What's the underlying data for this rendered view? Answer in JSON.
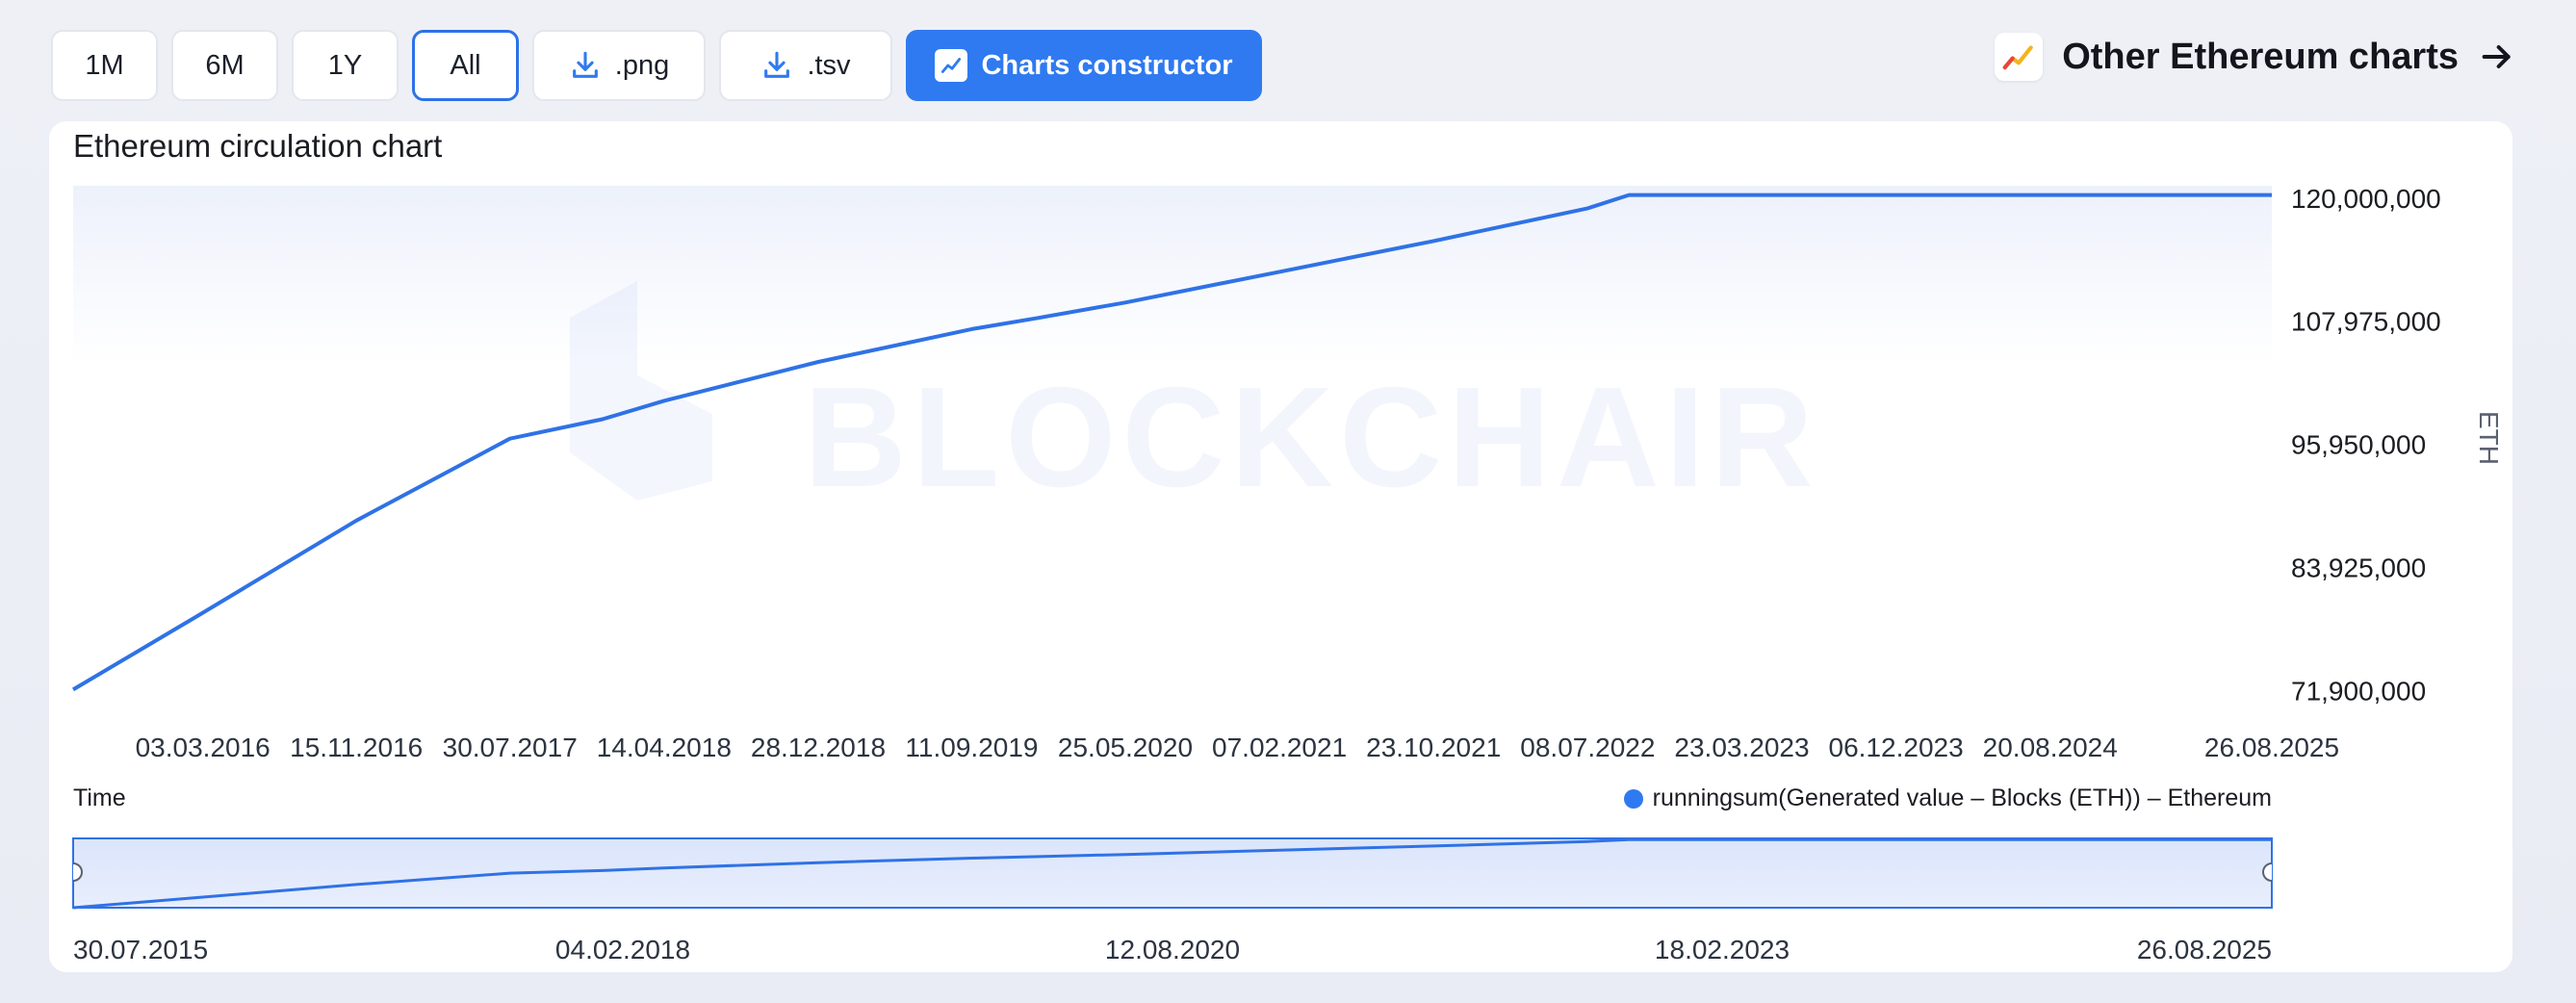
{
  "toolbar": {
    "range_buttons": [
      "1M",
      "6M",
      "1Y",
      "All"
    ],
    "active_range": "All",
    "download_png_label": ".png",
    "download_tsv_label": ".tsv",
    "constructor_label": "Charts constructor"
  },
  "other_charts_link": "Other Ethereum charts",
  "watermark": "BLOCKCHAIR",
  "colors": {
    "accent": "#2f7af0",
    "line": "#2f72e6"
  },
  "chart_data": {
    "type": "line",
    "title": "Ethereum circulation chart",
    "xlabel": "Time",
    "ylabel": "ETH",
    "x_ticks": [
      "03.03.2016",
      "15.11.2016",
      "30.07.2017",
      "14.04.2018",
      "28.12.2018",
      "11.09.2019",
      "25.05.2020",
      "07.02.2021",
      "23.10.2021",
      "08.07.2022",
      "23.03.2023",
      "06.12.2023",
      "20.08.2024",
      "26.08.2025"
    ],
    "y_ticks": [
      "120,000,000",
      "107,975,000",
      "95,950,000",
      "83,925,000",
      "71,900,000"
    ],
    "ylim": [
      71000000,
      121200000
    ],
    "series": [
      {
        "name": "runningsum(Generated value – Blocks (ETH)) – Ethereum",
        "x": [
          "30.07.2015",
          "03.03.2016",
          "15.11.2016",
          "30.07.2017",
          "01.01.2018",
          "14.04.2018",
          "28.12.2018",
          "11.09.2019",
          "01.01.2020",
          "25.05.2020",
          "07.02.2021",
          "23.10.2021",
          "08.07.2022",
          "15.09.2022",
          "23.03.2023",
          "06.12.2023",
          "20.08.2024",
          "26.08.2025"
        ],
        "y": [
          72000000,
          79500000,
          88500000,
          96500000,
          98400000,
          100200000,
          104000000,
          107200000,
          108300000,
          109800000,
          112800000,
          115800000,
          119000000,
          120300000,
          120300000,
          120300000,
          120300000,
          120300000
        ]
      }
    ],
    "legend_position": "bottom-right",
    "navigator": {
      "labels": [
        "30.07.2015",
        "04.02.2018",
        "12.08.2020",
        "18.02.2023",
        "26.08.2025"
      ]
    }
  }
}
